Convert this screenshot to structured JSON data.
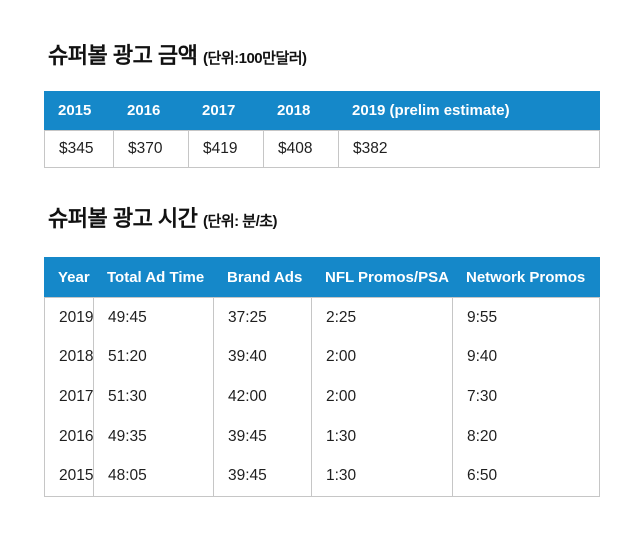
{
  "colors": {
    "header_bg": "#1588c9",
    "header_text": "#ffffff",
    "cell_border": "#c6c6c6",
    "body_text": "#1f1f1f"
  },
  "sections": [
    {
      "title": "슈퍼볼 광고 금액",
      "unit": "(단위:100만달러)"
    },
    {
      "title": "슈퍼볼 광고 시간",
      "unit": "(단위: 분/초)"
    }
  ],
  "chart_data": [
    {
      "type": "table",
      "title": "슈퍼볼 광고 금액 (단위:100만달러)",
      "columns": [
        "2015",
        "2016",
        "2017",
        "2018",
        "2019 (prelim estimate)"
      ],
      "rows": [
        [
          "$345",
          "$370",
          "$419",
          "$408",
          "$382"
        ]
      ]
    },
    {
      "type": "table",
      "title": "슈퍼볼 광고 시간 (단위: 분/초)",
      "columns": [
        "Year",
        "Total Ad Time",
        "Brand Ads",
        "NFL Promos/PSA",
        "Network Promos"
      ],
      "rows": [
        [
          "2019",
          "49:45",
          "37:25",
          "2:25",
          "9:55"
        ],
        [
          "2018",
          "51:20",
          "39:40",
          "2:00",
          "9:40"
        ],
        [
          "2017",
          "51:30",
          "42:00",
          "2:00",
          "7:30"
        ],
        [
          "2016",
          "49:35",
          "39:45",
          "1:30",
          "8:20"
        ],
        [
          "2015",
          "48:05",
          "39:45",
          "1:30",
          "6:50"
        ]
      ]
    }
  ]
}
